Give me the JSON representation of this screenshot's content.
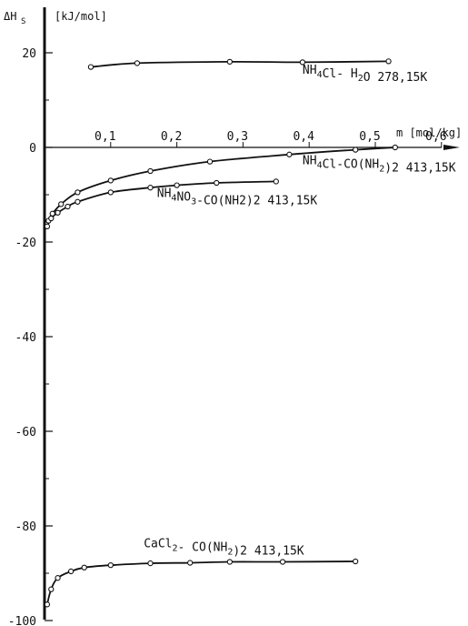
{
  "chart_data": {
    "type": "line",
    "title": "",
    "ylabel": "ΔHs [kJ/mol]",
    "xlabel": "m [mol/kg]",
    "xlim": [
      0,
      0.66
    ],
    "ylim": [
      -100,
      25
    ],
    "x_ticks": [
      {
        "v": 0.1,
        "label": "0,1"
      },
      {
        "v": 0.2,
        "label": "0,2"
      },
      {
        "v": 0.3,
        "label": "0,3"
      },
      {
        "v": 0.4,
        "label": "0,4"
      },
      {
        "v": 0.5,
        "label": "0,5"
      },
      {
        "v": 0.6,
        "label": "0,6"
      }
    ],
    "y_ticks": [
      {
        "v": 20,
        "label": "20"
      },
      {
        "v": 0,
        "label": "0"
      },
      {
        "v": -20,
        "label": "-20"
      },
      {
        "v": -40,
        "label": "-40"
      },
      {
        "v": -60,
        "label": "-60"
      },
      {
        "v": -80,
        "label": "-80"
      },
      {
        "v": -100,
        "label": "-100"
      }
    ],
    "y_minor_ticks": [
      10,
      -10,
      -30,
      -50,
      -70,
      -90
    ],
    "grid": false,
    "series": [
      {
        "name": "NH4Cl-H2O 278,15K",
        "label": {
          "x": 0.39,
          "y": 15.6,
          "pre": "NH",
          "sub1": "4",
          "mid": "Cl- H",
          "sub2": "2",
          "post": "O  278,15K"
        },
        "x": [
          0.07,
          0.14,
          0.28,
          0.39,
          0.52
        ],
        "y": [
          17.0,
          17.8,
          18.1,
          18.0,
          18.2
        ]
      },
      {
        "name": "NH4Cl-CO(NH2)2 413,15K",
        "label": {
          "x": 0.39,
          "y": -3.6,
          "pre": "NH",
          "sub1": "4",
          "mid": "Cl-CO(NH",
          "sub2": "2",
          "post": ")2 413,15K"
        },
        "x": [
          0.006,
          0.012,
          0.025,
          0.05,
          0.1,
          0.16,
          0.25,
          0.37,
          0.47,
          0.53
        ],
        "y": [
          -15.5,
          -14.0,
          -12.0,
          -9.5,
          -7.0,
          -5.0,
          -3.0,
          -1.5,
          -0.5,
          0.0
        ]
      },
      {
        "name": "NH4NO3-CO(NH2)2 413,15K",
        "label": {
          "x": 0.17,
          "y": -10.5,
          "pre": "NH",
          "sub1": "4",
          "mid": "NO",
          "sub2": "3",
          "post": "-CO(NH2)2 413,15K"
        },
        "x": [
          0.004,
          0.01,
          0.02,
          0.035,
          0.05,
          0.1,
          0.16,
          0.2,
          0.26,
          0.35
        ],
        "y": [
          -16.7,
          -15.0,
          -13.8,
          -12.5,
          -11.5,
          -9.5,
          -8.5,
          -8.0,
          -7.5,
          -7.2
        ]
      },
      {
        "name": "CaCl2-CO(NH2)2 413,15K",
        "label": {
          "x": 0.15,
          "y": -84.5,
          "pre": "CaCl",
          "sub1": "2",
          "mid": "- CO(NH",
          "sub2": "2",
          "post": ")2 413,15K"
        },
        "x": [
          0.004,
          0.01,
          0.02,
          0.04,
          0.06,
          0.1,
          0.16,
          0.22,
          0.28,
          0.36,
          0.47
        ],
        "y": [
          -96.6,
          -93.4,
          -91.0,
          -89.6,
          -88.8,
          -88.3,
          -87.9,
          -87.8,
          -87.6,
          -87.6,
          -87.5
        ]
      }
    ]
  }
}
